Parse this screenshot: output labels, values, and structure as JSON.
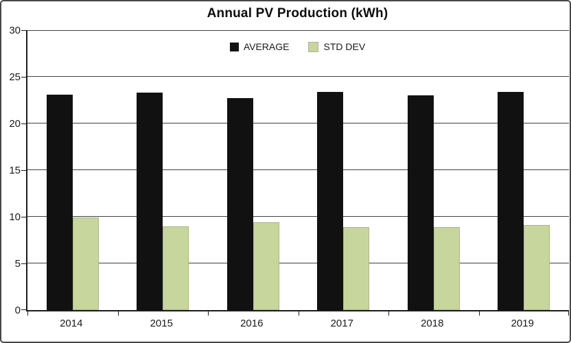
{
  "window": {
    "background": "#ffffff",
    "frame_border_color": "#474747"
  },
  "chart_data": {
    "type": "bar",
    "title": "Annual PV Production (kWh)",
    "categories": [
      "2014",
      "2015",
      "2016",
      "2017",
      "2018",
      "2019"
    ],
    "series": [
      {
        "name": "AVERAGE",
        "color": "#111111",
        "border_color": "#000000",
        "values": [
          23.1,
          23.3,
          22.7,
          23.4,
          23.0,
          23.4
        ]
      },
      {
        "name": "STD DEV",
        "color": "#c6d69c",
        "border_color": "#a9b87f",
        "values": [
          9.9,
          9.0,
          9.4,
          8.9,
          8.9,
          9.1
        ]
      }
    ],
    "xlabel": "",
    "ylabel": "",
    "ylim": [
      0,
      30
    ],
    "yticks": [
      0,
      5,
      10,
      15,
      20,
      25,
      30
    ],
    "grid": "horizontal",
    "gridline_color": "#3f3f3f",
    "axis_color": "#1a1a1a",
    "legend_position": "top-center"
  }
}
